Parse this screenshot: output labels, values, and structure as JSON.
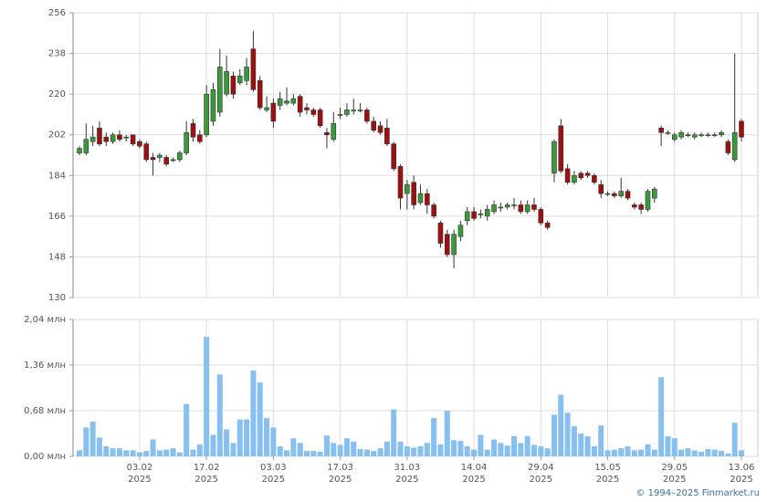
{
  "chart_data": [
    {
      "type": "candlestick",
      "up_color": "#3a9a3a",
      "down_color": "#9e1010",
      "ylim": [
        130,
        256
      ],
      "yticks": [
        130,
        148,
        166,
        184,
        202,
        220,
        238,
        256
      ],
      "grid": true,
      "open": [
        194,
        194,
        199,
        205,
        201,
        199,
        202,
        201,
        202,
        199,
        198,
        192,
        192,
        192,
        191,
        191,
        194,
        207,
        202,
        202,
        208,
        212,
        220,
        228,
        225,
        226,
        240,
        226,
        213,
        216,
        215,
        216,
        216,
        219,
        214,
        213,
        213,
        203,
        200,
        211,
        211,
        213,
        213,
        213,
        208,
        206,
        205,
        198,
        188,
        176,
        181,
        172,
        176,
        171,
        163,
        158,
        149,
        157,
        164,
        168,
        167,
        166,
        168,
        170,
        170,
        171,
        171,
        168,
        171,
        169,
        163,
        185,
        206,
        187,
        181,
        185,
        185,
        184,
        180,
        176,
        176,
        175,
        177,
        171,
        171,
        169,
        174,
        205,
        203,
        200,
        201,
        202,
        201,
        202,
        202,
        202,
        202,
        199,
        191,
        208
      ],
      "high": [
        197,
        207,
        206,
        208,
        203,
        203,
        204,
        202,
        202,
        200,
        199,
        194,
        194,
        193,
        192,
        195,
        208,
        209,
        204,
        224,
        225,
        240,
        237,
        230,
        231,
        236,
        248,
        228,
        219,
        218,
        221,
        223,
        220,
        220,
        216,
        214,
        214,
        205,
        212,
        214,
        216,
        218,
        216,
        214,
        210,
        208,
        209,
        199,
        189,
        182,
        184,
        180,
        178,
        172,
        164,
        160,
        160,
        164,
        170,
        170,
        169,
        171,
        173,
        172,
        172,
        174,
        173,
        173,
        174,
        170,
        164,
        200,
        209,
        189,
        186,
        186,
        186,
        185,
        182,
        177,
        177,
        183,
        178,
        172,
        172,
        178,
        179,
        206,
        204,
        203,
        204,
        203,
        203,
        203,
        203,
        203,
        204,
        200,
        238,
        209
      ],
      "low": [
        193,
        193,
        197,
        197,
        197,
        198,
        199,
        199,
        197,
        196,
        190,
        184,
        190,
        188,
        190,
        190,
        193,
        199,
        198,
        201,
        206,
        210,
        219,
        218,
        224,
        224,
        221,
        213,
        212,
        205,
        213,
        215,
        215,
        210,
        211,
        210,
        205,
        196,
        199,
        209,
        210,
        211,
        212,
        207,
        203,
        202,
        197,
        186,
        169,
        169,
        169,
        171,
        167,
        165,
        152,
        148,
        143,
        155,
        162,
        164,
        165,
        164,
        167,
        168,
        169,
        169,
        167,
        167,
        168,
        162,
        160,
        181,
        185,
        180,
        180,
        182,
        183,
        180,
        174,
        175,
        174,
        174,
        173,
        169,
        167,
        168,
        172,
        197,
        202,
        199,
        200,
        201,
        200,
        201,
        201,
        201,
        201,
        193,
        190,
        199
      ],
      "close": [
        196,
        200,
        201,
        198,
        199,
        202,
        200,
        201,
        198,
        197,
        191,
        191,
        193,
        189,
        191,
        194,
        203,
        201,
        199,
        220,
        222,
        232,
        230,
        220,
        228,
        232,
        222,
        214,
        214,
        208,
        218,
        217,
        218,
        212,
        213,
        211,
        206,
        202,
        207,
        211,
        213,
        213,
        213,
        208,
        204,
        203,
        198,
        187,
        174,
        180,
        171,
        176,
        171,
        166,
        154,
        149,
        158,
        162,
        168,
        165,
        167,
        169,
        171,
        170,
        171,
        171,
        168,
        171,
        169,
        163,
        161,
        199,
        186,
        181,
        184,
        183,
        184,
        181,
        176,
        176,
        175,
        177,
        174,
        170,
        169,
        177,
        178,
        203,
        203,
        202,
        203,
        202,
        202,
        202,
        202,
        202,
        203,
        194,
        203,
        201
      ]
    },
    {
      "type": "bar",
      "color": "#86bff0",
      "ylim": [
        0,
        2.04
      ],
      "yticks": [
        {
          "value": 0,
          "label": "0,00 млн"
        },
        {
          "value": 0.68,
          "label": "0,68 млн"
        },
        {
          "value": 1.36,
          "label": "1,36 млн"
        },
        {
          "value": 2.04,
          "label": "2,04 млн"
        }
      ],
      "grid": true,
      "categories": [
        null,
        null,
        null,
        null,
        null,
        null,
        null,
        null,
        null,
        "03.02\n2025",
        null,
        null,
        null,
        null,
        null,
        null,
        null,
        null,
        null,
        "17.02\n2025",
        null,
        null,
        null,
        null,
        null,
        null,
        null,
        null,
        null,
        "03.03\n2025",
        null,
        null,
        null,
        null,
        null,
        null,
        null,
        null,
        null,
        "17.03\n2025",
        null,
        null,
        null,
        null,
        null,
        null,
        null,
        null,
        null,
        "31.03\n2025",
        null,
        null,
        null,
        null,
        null,
        null,
        null,
        null,
        null,
        "14.04\n2025",
        null,
        null,
        null,
        null,
        null,
        null,
        null,
        null,
        null,
        "29.04\n2025",
        null,
        null,
        null,
        null,
        null,
        null,
        null,
        null,
        null,
        "15.05\n2025",
        null,
        null,
        null,
        null,
        null,
        null,
        null,
        null,
        null,
        "29.05\n2025",
        null,
        null,
        null,
        null,
        null,
        null,
        null,
        null,
        null,
        "13.06\n2025"
      ],
      "values": [
        0.09,
        0.43,
        0.52,
        0.28,
        0.15,
        0.12,
        0.12,
        0.09,
        0.09,
        0.06,
        0.08,
        0.25,
        0.09,
        0.1,
        0.12,
        0.06,
        0.78,
        0.1,
        0.18,
        1.78,
        0.32,
        1.22,
        0.4,
        0.2,
        0.55,
        0.55,
        1.28,
        1.1,
        0.57,
        0.43,
        0.15,
        0.09,
        0.27,
        0.2,
        0.08,
        0.08,
        0.07,
        0.31,
        0.2,
        0.17,
        0.27,
        0.22,
        0.11,
        0.1,
        0.08,
        0.12,
        0.22,
        0.7,
        0.22,
        0.15,
        0.13,
        0.15,
        0.2,
        0.57,
        0.18,
        0.68,
        0.24,
        0.23,
        0.15,
        0.1,
        0.32,
        0.1,
        0.25,
        0.2,
        0.16,
        0.3,
        0.2,
        0.3,
        0.17,
        0.15,
        0.12,
        0.62,
        0.92,
        0.65,
        0.45,
        0.34,
        0.3,
        0.15,
        0.46,
        0.09,
        0.1,
        0.12,
        0.15,
        0.09,
        0.1,
        0.18,
        0.1,
        1.18,
        0.3,
        0.27,
        0.1,
        0.12,
        0.09,
        0.07,
        0.11,
        0.1,
        0.08,
        0.04,
        0.5,
        0.09
      ]
    }
  ],
  "footer": "© 1994–2025 Finmarket.ru"
}
